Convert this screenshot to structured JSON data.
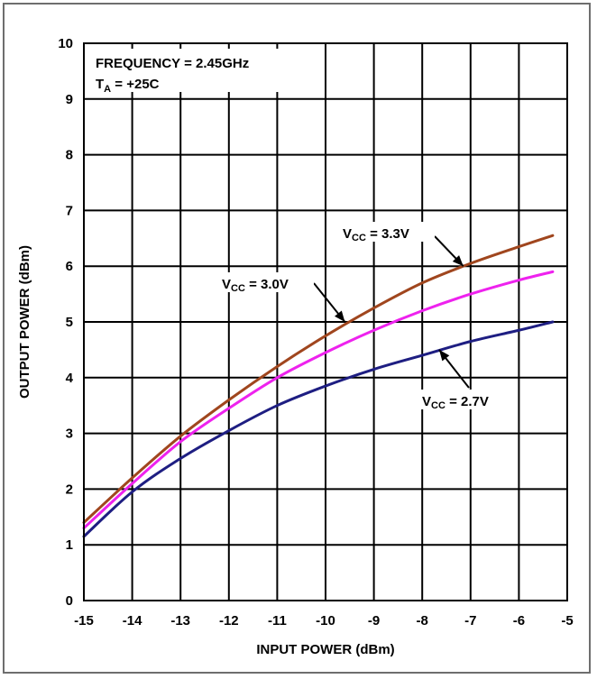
{
  "chart_data": {
    "type": "line",
    "title": "",
    "xlabel": "INPUT POWER (dBm)",
    "ylabel": "OUTPUT POWER (dBm)",
    "xlim": [
      -15,
      -5
    ],
    "ylim": [
      0,
      10
    ],
    "x_ticks": [
      "-15",
      "-14",
      "-13",
      "-12",
      "-11",
      "-10",
      "-9",
      "-8",
      "-7",
      "-6",
      "-5"
    ],
    "y_ticks": [
      "0",
      "1",
      "2",
      "3",
      "4",
      "5",
      "6",
      "7",
      "8",
      "9",
      "10"
    ],
    "grid": true,
    "conditions": {
      "frequency": "FREQUENCY = 2.45GHz",
      "ta_main": "T",
      "ta_sub": "A",
      "ta_value": " = +25C"
    },
    "series": [
      {
        "name": "VCC = 3.3V",
        "label_main": "V",
        "label_sub": "CC",
        "label_value": " = 3.3V",
        "color": "#a0461e",
        "x": [
          -15,
          -14,
          -13,
          -12,
          -11,
          -10,
          -9,
          -8,
          -7,
          -6,
          -5.3
        ],
        "y": [
          1.4,
          2.2,
          2.95,
          3.6,
          4.2,
          4.75,
          5.25,
          5.7,
          6.05,
          6.35,
          6.55
        ]
      },
      {
        "name": "VCC = 3.0V",
        "label_main": "V",
        "label_sub": "CC",
        "label_value": " = 3.0V",
        "color": "#ee22ee",
        "x": [
          -15,
          -14,
          -13,
          -12,
          -11,
          -10,
          -9,
          -8,
          -7,
          -6,
          -5.3
        ],
        "y": [
          1.3,
          2.1,
          2.85,
          3.45,
          4.0,
          4.45,
          4.85,
          5.2,
          5.5,
          5.75,
          5.9
        ]
      },
      {
        "name": "VCC = 2.7V",
        "label_main": "V",
        "label_sub": "CC",
        "label_value": " = 2.7V",
        "color": "#1e1e82",
        "x": [
          -15,
          -14,
          -13,
          -12,
          -11,
          -10,
          -9,
          -8,
          -7,
          -6,
          -5.3
        ],
        "y": [
          1.15,
          1.95,
          2.55,
          3.05,
          3.5,
          3.85,
          4.15,
          4.4,
          4.65,
          4.85,
          5.0
        ]
      }
    ]
  }
}
